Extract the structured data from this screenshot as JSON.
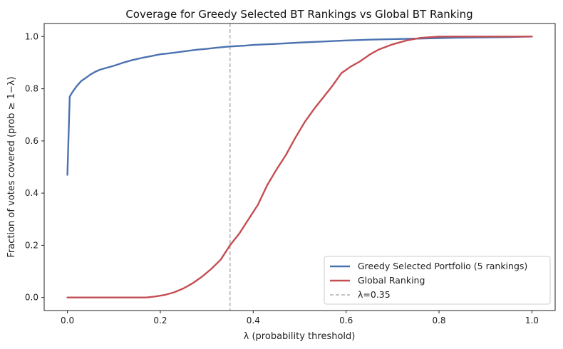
{
  "chart_data": {
    "type": "line",
    "title": "Coverage for Greedy Selected BT Rankings vs Global BT Ranking",
    "xlabel": "λ (probability threshold)",
    "ylabel": "Fraction of votes covered (prob ≥ 1−λ)",
    "xlim": [
      -0.05,
      1.05
    ],
    "ylim": [
      -0.05,
      1.05
    ],
    "xticks": [
      0.0,
      0.2,
      0.4,
      0.6,
      0.8,
      1.0
    ],
    "xtick_labels": [
      "0.0",
      "0.2",
      "0.4",
      "0.6",
      "0.8",
      "1.0"
    ],
    "yticks": [
      0.0,
      0.2,
      0.4,
      0.6,
      0.8,
      1.0
    ],
    "ytick_labels": [
      "0.0",
      "0.2",
      "0.4",
      "0.6",
      "0.8",
      "1.0"
    ],
    "grid": false,
    "legend_position": "lower-right",
    "series": [
      {
        "name": "Greedy Selected Portfolio (5 rankings)",
        "color": "#4c72b0",
        "points": [
          [
            0.0,
            0.47
          ],
          [
            0.005,
            0.77
          ],
          [
            0.01,
            0.785
          ],
          [
            0.02,
            0.81
          ],
          [
            0.03,
            0.83
          ],
          [
            0.04,
            0.842
          ],
          [
            0.05,
            0.855
          ],
          [
            0.06,
            0.865
          ],
          [
            0.07,
            0.873
          ],
          [
            0.08,
            0.878
          ],
          [
            0.1,
            0.888
          ],
          [
            0.12,
            0.9
          ],
          [
            0.14,
            0.91
          ],
          [
            0.16,
            0.918
          ],
          [
            0.18,
            0.925
          ],
          [
            0.2,
            0.932
          ],
          [
            0.22,
            0.936
          ],
          [
            0.25,
            0.943
          ],
          [
            0.28,
            0.95
          ],
          [
            0.3,
            0.953
          ],
          [
            0.32,
            0.957
          ],
          [
            0.35,
            0.962
          ],
          [
            0.38,
            0.965
          ],
          [
            0.4,
            0.968
          ],
          [
            0.45,
            0.972
          ],
          [
            0.5,
            0.977
          ],
          [
            0.55,
            0.981
          ],
          [
            0.6,
            0.985
          ],
          [
            0.65,
            0.988
          ],
          [
            0.7,
            0.99
          ],
          [
            0.75,
            0.992
          ],
          [
            0.8,
            0.994
          ],
          [
            0.85,
            0.996
          ],
          [
            0.9,
            0.997
          ],
          [
            0.95,
            0.998
          ],
          [
            1.0,
            1.0
          ]
        ]
      },
      {
        "name": "Global Ranking",
        "color": "#c44e52",
        "points": [
          [
            0.0,
            0.0
          ],
          [
            0.17,
            0.0
          ],
          [
            0.19,
            0.004
          ],
          [
            0.21,
            0.01
          ],
          [
            0.23,
            0.02
          ],
          [
            0.25,
            0.035
          ],
          [
            0.27,
            0.055
          ],
          [
            0.29,
            0.08
          ],
          [
            0.31,
            0.11
          ],
          [
            0.33,
            0.145
          ],
          [
            0.35,
            0.2
          ],
          [
            0.37,
            0.245
          ],
          [
            0.39,
            0.3
          ],
          [
            0.41,
            0.355
          ],
          [
            0.43,
            0.43
          ],
          [
            0.45,
            0.49
          ],
          [
            0.47,
            0.545
          ],
          [
            0.49,
            0.61
          ],
          [
            0.51,
            0.67
          ],
          [
            0.53,
            0.72
          ],
          [
            0.55,
            0.765
          ],
          [
            0.57,
            0.81
          ],
          [
            0.59,
            0.86
          ],
          [
            0.61,
            0.885
          ],
          [
            0.63,
            0.905
          ],
          [
            0.65,
            0.93
          ],
          [
            0.67,
            0.95
          ],
          [
            0.7,
            0.97
          ],
          [
            0.73,
            0.985
          ],
          [
            0.76,
            0.995
          ],
          [
            0.8,
            1.0
          ],
          [
            1.0,
            1.0
          ]
        ]
      }
    ],
    "reference_line": {
      "name": "λ=0.35",
      "x": 0.35,
      "color": "#b0b0b0",
      "style": "dashed"
    }
  }
}
